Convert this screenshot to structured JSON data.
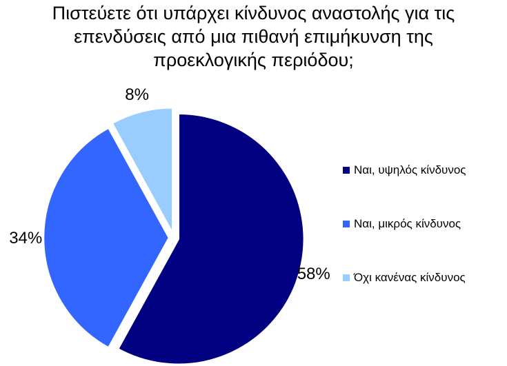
{
  "title_lines": [
    "Πιστεύετε ότι υπάρχει κίνδυνος αναστολής για τις",
    "επενδύσεις από μια πιθανή επιμήκυνση της",
    "προεκλογικής περιόδου;"
  ],
  "chart_data": {
    "type": "pie",
    "title": "Πιστεύετε ότι υπάρχει κίνδυνος αναστολής για τις επενδύσεις από μια πιθανή επιμήκυνση της προεκλογικής περιόδου;",
    "categories": [
      "Ναι, υψηλός κίνδυνος",
      "Ναι, μικρός κίνδυνος",
      "Όχι κανένας κίνδυνος"
    ],
    "values": [
      58,
      34,
      8
    ],
    "labels": [
      "58%",
      "34%",
      "8%"
    ],
    "colors": [
      "#000080",
      "#3366FF",
      "#99CCFF"
    ],
    "legend": "right",
    "start_angle": "12 o'clock",
    "direction": "clockwise"
  }
}
